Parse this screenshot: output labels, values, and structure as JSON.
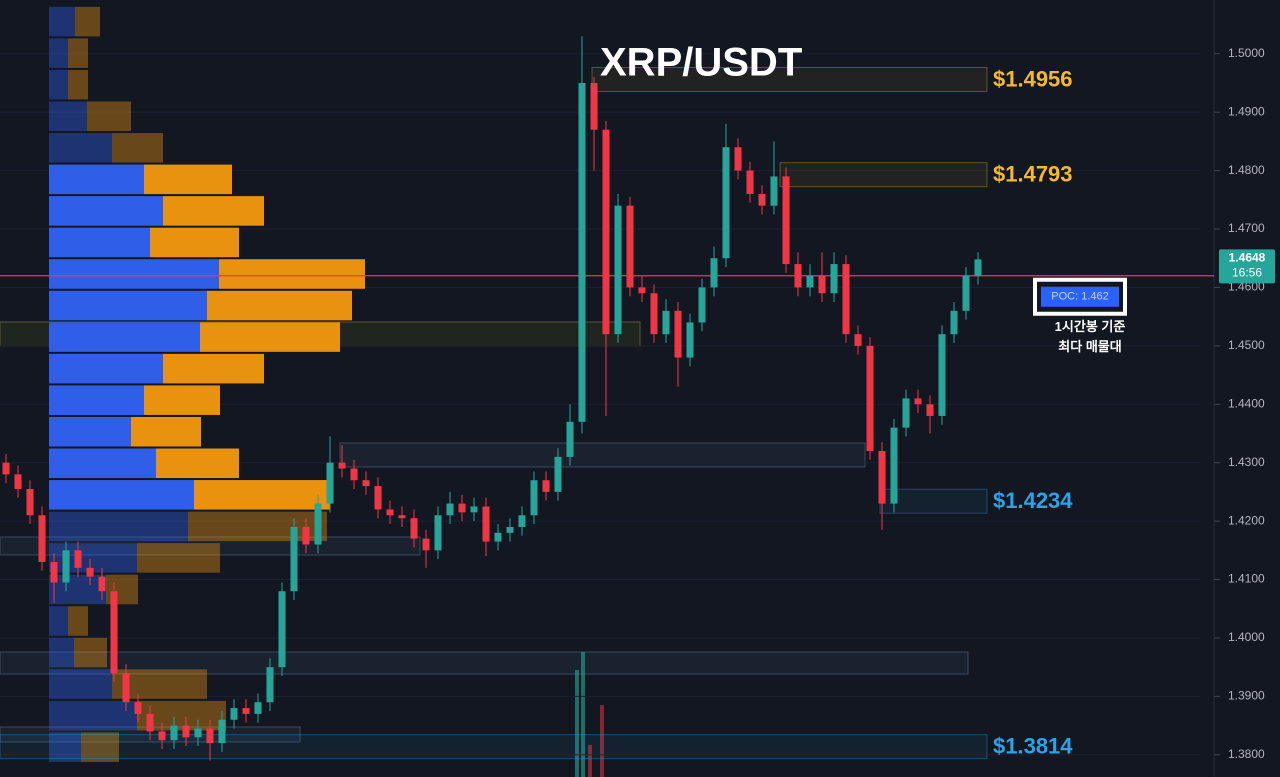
{
  "chart_data": {
    "type": "candlestick",
    "title": "XRP/USDT",
    "up_color": "#26a69a",
    "down_color": "#f23645",
    "open": [
      1.43,
      1.428,
      1.4255,
      1.421,
      1.413,
      1.4095,
      1.415,
      1.412,
      1.4105,
      1.408,
      1.394,
      1.389,
      1.387,
      1.384,
      1.3825,
      1.385,
      1.383,
      1.3845,
      1.382,
      1.386,
      1.388,
      1.387,
      1.389,
      1.395,
      1.408,
      1.419,
      1.416,
      1.423,
      1.43,
      1.429,
      1.427,
      1.426,
      1.422,
      1.421,
      1.4205,
      1.417,
      1.415,
      1.421,
      1.423,
      1.4215,
      1.4225,
      1.4165,
      1.418,
      1.419,
      1.421,
      1.427,
      1.425,
      1.431,
      1.437,
      1.495,
      1.487,
      1.452,
      1.474,
      1.46,
      1.459,
      1.452,
      1.456,
      1.448,
      1.454,
      1.46,
      1.465,
      1.484,
      1.48,
      1.476,
      1.474,
      1.479,
      1.464,
      1.46,
      1.462,
      1.459,
      1.464,
      1.452,
      1.45,
      1.432,
      1.423,
      1.436,
      1.441,
      1.44,
      1.438,
      1.452,
      1.456,
      1.462
    ],
    "high": [
      1.4315,
      1.4295,
      1.427,
      1.4225,
      1.4145,
      1.4165,
      1.4165,
      1.4135,
      1.412,
      1.4095,
      1.3955,
      1.3905,
      1.3885,
      1.3855,
      1.3865,
      1.3865,
      1.386,
      1.386,
      1.3875,
      1.3895,
      1.3895,
      1.3905,
      1.3965,
      1.4095,
      1.4205,
      1.4205,
      1.4245,
      1.4345,
      1.433,
      1.4305,
      1.4285,
      1.4275,
      1.4235,
      1.4225,
      1.422,
      1.4185,
      1.4225,
      1.425,
      1.4245,
      1.424,
      1.424,
      1.4195,
      1.4205,
      1.4225,
      1.4285,
      1.4285,
      1.4325,
      1.44,
      1.503,
      1.496,
      1.4885,
      1.476,
      1.4755,
      1.462,
      1.4605,
      1.458,
      1.4575,
      1.4555,
      1.4615,
      1.467,
      1.488,
      1.4855,
      1.4815,
      1.4775,
      1.485,
      1.4805,
      1.466,
      1.464,
      1.466,
      1.466,
      1.4655,
      1.4535,
      1.4515,
      1.4335,
      1.4375,
      1.4425,
      1.4425,
      1.4415,
      1.4535,
      1.4575,
      1.4635,
      1.466
    ],
    "low": [
      1.4265,
      1.424,
      1.4195,
      1.4115,
      1.406,
      1.408,
      1.4105,
      1.409,
      1.4065,
      1.3925,
      1.3875,
      1.3855,
      1.3825,
      1.381,
      1.381,
      1.3815,
      1.3815,
      1.379,
      1.3805,
      1.3845,
      1.3855,
      1.3855,
      1.3875,
      1.3935,
      1.4065,
      1.4145,
      1.4145,
      1.4215,
      1.4275,
      1.4255,
      1.4245,
      1.4205,
      1.4195,
      1.419,
      1.4155,
      1.412,
      1.4135,
      1.4195,
      1.42,
      1.42,
      1.414,
      1.415,
      1.4165,
      1.4175,
      1.4195,
      1.4235,
      1.4235,
      1.4295,
      1.435,
      1.48,
      1.438,
      1.4505,
      1.4585,
      1.4575,
      1.4505,
      1.4505,
      1.443,
      1.4465,
      1.4525,
      1.4585,
      1.4635,
      1.4785,
      1.4745,
      1.4725,
      1.4725,
      1.4625,
      1.4585,
      1.4585,
      1.4575,
      1.4575,
      1.4505,
      1.4485,
      1.4305,
      1.4185,
      1.4215,
      1.4345,
      1.4385,
      1.435,
      1.4365,
      1.4505,
      1.4545,
      1.4605
    ],
    "close": [
      1.428,
      1.4255,
      1.421,
      1.413,
      1.4095,
      1.415,
      1.412,
      1.4105,
      1.408,
      1.394,
      1.389,
      1.387,
      1.384,
      1.3825,
      1.385,
      1.383,
      1.3845,
      1.382,
      1.386,
      1.388,
      1.387,
      1.389,
      1.395,
      1.408,
      1.419,
      1.416,
      1.423,
      1.43,
      1.429,
      1.427,
      1.426,
      1.422,
      1.421,
      1.4205,
      1.417,
      1.415,
      1.421,
      1.423,
      1.4215,
      1.4225,
      1.4165,
      1.418,
      1.419,
      1.421,
      1.427,
      1.425,
      1.431,
      1.437,
      1.495,
      1.487,
      1.452,
      1.474,
      1.46,
      1.459,
      1.452,
      1.456,
      1.448,
      1.454,
      1.46,
      1.465,
      1.484,
      1.48,
      1.476,
      1.474,
      1.479,
      1.464,
      1.46,
      1.462,
      1.459,
      1.464,
      1.452,
      1.45,
      1.432,
      1.423,
      1.436,
      1.441,
      1.44,
      1.438,
      1.452,
      1.456,
      1.462,
      1.4648
    ],
    "ylim": [
      1.3762,
      1.5092
    ],
    "yticks": [
      {
        "value": 1.5,
        "label": "1.5000"
      },
      {
        "value": 1.49,
        "label": "1.4900"
      },
      {
        "value": 1.48,
        "label": "1.4800"
      },
      {
        "value": 1.47,
        "label": "1.4700"
      },
      {
        "value": 1.46,
        "label": "1.4600"
      },
      {
        "value": 1.45,
        "label": "1.4500"
      },
      {
        "value": 1.44,
        "label": "1.4400"
      },
      {
        "value": 1.43,
        "label": "1.4300"
      },
      {
        "value": 1.42,
        "label": "1.4200"
      },
      {
        "value": 1.41,
        "label": "1.4100"
      },
      {
        "value": 1.4,
        "label": "1.4000"
      },
      {
        "value": 1.39,
        "label": "1.3900"
      },
      {
        "value": 1.38,
        "label": "1.3800"
      }
    ],
    "last_price": 1.4648,
    "countdown": "16:56",
    "levels": [
      {
        "value": 1.4956,
        "label": "$1.4956",
        "color": "#f5b82e"
      },
      {
        "value": 1.4793,
        "label": "$1.4793",
        "color": "#f5b82e"
      },
      {
        "value": 1.4234,
        "label": "$1.4234",
        "color": "#2ba3e8"
      },
      {
        "value": 1.3814,
        "label": "$1.3814",
        "color": "#2ba3e8"
      }
    ],
    "poc": {
      "value": 1.462,
      "label": "POC: 1.462",
      "color": "#f23645"
    },
    "annotation": [
      "1시간봉 기준",
      "최다 매물대"
    ],
    "volume_profile": {
      "bins": [
        1.5082,
        1.5028,
        1.4974,
        1.492,
        1.4866,
        1.4812,
        1.4758,
        1.4704,
        1.465,
        1.4596,
        1.4542,
        1.4488,
        1.4434,
        1.438,
        1.4326,
        1.4272,
        1.4218,
        1.4164,
        1.411,
        1.4056,
        1.4002,
        1.3948,
        1.3894,
        1.384,
        1.3786
      ],
      "buy": [
        26,
        19,
        19,
        38,
        63,
        95,
        114,
        101,
        170,
        158,
        151,
        114,
        95,
        82,
        107,
        145,
        139,
        88,
        57,
        19,
        25,
        63,
        88,
        32
      ],
      "sell": [
        25,
        20,
        20,
        44,
        51,
        88,
        101,
        89,
        146,
        145,
        140,
        101,
        76,
        70,
        83,
        136,
        139,
        83,
        32,
        20,
        33,
        95,
        89,
        38
      ],
      "buy_color": "#2f5fe8",
      "sell_color": "#e8920f",
      "value_area": [
        1.4218,
        1.4812
      ]
    }
  }
}
